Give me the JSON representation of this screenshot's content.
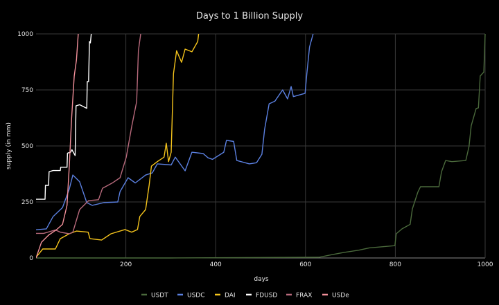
{
  "chart_data": {
    "type": "line",
    "title": "Days to 1 Billion Supply",
    "xlabel": "days",
    "ylabel": "supply (in mm)",
    "xlim": [
      0,
      1000
    ],
    "ylim": [
      0,
      1000
    ],
    "xticks": [
      200,
      400,
      600,
      800,
      1000
    ],
    "yticks": [
      0,
      250,
      500,
      750,
      1000
    ],
    "grid": true,
    "legend_position": "bottom",
    "series": [
      {
        "name": "USDT",
        "color": "#4b6a3c",
        "points": [
          [
            0,
            0
          ],
          [
            300,
            0
          ],
          [
            630,
            3
          ],
          [
            660,
            15
          ],
          [
            686,
            25
          ],
          [
            719,
            35
          ],
          [
            742,
            45
          ],
          [
            799,
            55
          ],
          [
            802,
            108
          ],
          [
            815,
            130
          ],
          [
            833,
            150
          ],
          [
            838,
            219
          ],
          [
            850,
            293
          ],
          [
            856,
            318
          ],
          [
            897,
            318
          ],
          [
            903,
            385
          ],
          [
            912,
            435
          ],
          [
            926,
            430
          ],
          [
            957,
            435
          ],
          [
            964,
            497
          ],
          [
            969,
            590
          ],
          [
            980,
            667
          ],
          [
            985,
            670
          ],
          [
            989,
            812
          ],
          [
            997,
            830
          ],
          [
            1000,
            1000
          ]
        ]
      },
      {
        "name": "USDC",
        "color": "#5b80e0",
        "points": [
          [
            0,
            126
          ],
          [
            23,
            130
          ],
          [
            38,
            185
          ],
          [
            59,
            225
          ],
          [
            74,
            308
          ],
          [
            82,
            370
          ],
          [
            97,
            340
          ],
          [
            113,
            247
          ],
          [
            125,
            235
          ],
          [
            151,
            247
          ],
          [
            182,
            250
          ],
          [
            187,
            296
          ],
          [
            205,
            358
          ],
          [
            221,
            335
          ],
          [
            244,
            370
          ],
          [
            259,
            380
          ],
          [
            270,
            420
          ],
          [
            301,
            415
          ],
          [
            310,
            450
          ],
          [
            332,
            389
          ],
          [
            347,
            472
          ],
          [
            372,
            466
          ],
          [
            383,
            447
          ],
          [
            393,
            440
          ],
          [
            418,
            472
          ],
          [
            424,
            525
          ],
          [
            440,
            520
          ],
          [
            447,
            435
          ],
          [
            475,
            420
          ],
          [
            491,
            425
          ],
          [
            503,
            463
          ],
          [
            509,
            574
          ],
          [
            519,
            688
          ],
          [
            532,
            700
          ],
          [
            549,
            750
          ],
          [
            560,
            710
          ],
          [
            568,
            765
          ],
          [
            573,
            720
          ],
          [
            599,
            735
          ],
          [
            603,
            821
          ],
          [
            609,
            941
          ],
          [
            617,
            1000
          ]
        ]
      },
      {
        "name": "DAI",
        "color": "#f5c41c",
        "points": [
          [
            0,
            3
          ],
          [
            15,
            40
          ],
          [
            43,
            40
          ],
          [
            54,
            86
          ],
          [
            74,
            108
          ],
          [
            90,
            120
          ],
          [
            116,
            115
          ],
          [
            120,
            86
          ],
          [
            146,
            80
          ],
          [
            167,
            108
          ],
          [
            198,
            127
          ],
          [
            213,
            115
          ],
          [
            226,
            127
          ],
          [
            231,
            185
          ],
          [
            244,
            216
          ],
          [
            252,
            327
          ],
          [
            257,
            410
          ],
          [
            270,
            430
          ],
          [
            285,
            450
          ],
          [
            290,
            512
          ],
          [
            295,
            430
          ],
          [
            301,
            472
          ],
          [
            306,
            822
          ],
          [
            313,
            925
          ],
          [
            324,
            873
          ],
          [
            332,
            932
          ],
          [
            347,
            920
          ],
          [
            360,
            966
          ],
          [
            362,
            1000
          ]
        ]
      },
      {
        "name": "FDUSD",
        "color": "#ffffff",
        "points": [
          [
            0,
            262
          ],
          [
            20,
            262
          ],
          [
            21,
            324
          ],
          [
            28,
            324
          ],
          [
            29,
            385
          ],
          [
            38,
            390
          ],
          [
            54,
            390
          ],
          [
            55,
            405
          ],
          [
            69,
            405
          ],
          [
            70,
            468
          ],
          [
            77,
            472
          ],
          [
            80,
            483
          ],
          [
            87,
            457
          ],
          [
            89,
            679
          ],
          [
            97,
            684
          ],
          [
            113,
            668
          ],
          [
            114,
            787
          ],
          [
            117,
            787
          ],
          [
            119,
            966
          ],
          [
            121,
            960
          ],
          [
            123,
            1000
          ]
        ]
      },
      {
        "name": "FRAX",
        "color": "#b86a7c",
        "points": [
          [
            0,
            110
          ],
          [
            17,
            110
          ],
          [
            43,
            125
          ],
          [
            54,
            115
          ],
          [
            74,
            108
          ],
          [
            82,
            115
          ],
          [
            97,
            216
          ],
          [
            117,
            256
          ],
          [
            139,
            260
          ],
          [
            148,
            311
          ],
          [
            171,
            336
          ],
          [
            187,
            358
          ],
          [
            201,
            450
          ],
          [
            213,
            586
          ],
          [
            224,
            698
          ],
          [
            228,
            925
          ],
          [
            233,
            1000
          ]
        ]
      },
      {
        "name": "USDe",
        "color": "#f2909a",
        "points": [
          [
            0,
            0
          ],
          [
            12,
            70
          ],
          [
            28,
            102
          ],
          [
            46,
            127
          ],
          [
            59,
            150
          ],
          [
            69,
            235
          ],
          [
            74,
            410
          ],
          [
            79,
            617
          ],
          [
            85,
            812
          ],
          [
            90,
            883
          ],
          [
            94,
            1000
          ]
        ]
      }
    ]
  }
}
